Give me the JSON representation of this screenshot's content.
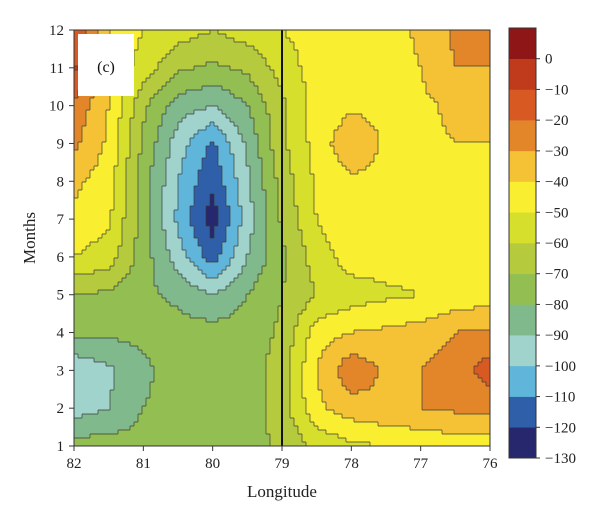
{
  "chart_data": {
    "type": "heatmap",
    "panel_label": "(c)",
    "xlabel": "Longitude",
    "ylabel": "Months",
    "x_ticks": [
      "82",
      "81",
      "80",
      "79",
      "78",
      "77",
      "76"
    ],
    "y_ticks": [
      "1",
      "2",
      "3",
      "4",
      "5",
      "6",
      "7",
      "8",
      "9",
      "10",
      "11",
      "12"
    ],
    "xlim": [
      82,
      76
    ],
    "ylim": [
      1,
      12
    ],
    "reference_line_x": 79,
    "colorbar": {
      "tick_labels": [
        "0",
        "−10",
        "−20",
        "−30",
        "−40",
        "−50",
        "−60",
        "−70",
        "−80",
        "−90",
        "−100",
        "−110",
        "−120",
        "−130"
      ],
      "levels": [
        -130,
        -120,
        -110,
        -100,
        -90,
        -80,
        -70,
        -60,
        -50,
        -40,
        -30,
        -20,
        -10,
        0,
        10
      ],
      "colors": [
        "#27276e",
        "#2f5fa8",
        "#5fb6da",
        "#9fd3cc",
        "#7fb98c",
        "#93bf52",
        "#b5cb3d",
        "#d7df2d",
        "#f9ee2f",
        "#f5c235",
        "#e3862a",
        "#d85a22",
        "#c03a1c",
        "#8e1616"
      ]
    },
    "values": {
      "description_none": "",
      "longitude": [
        82,
        81.5,
        81,
        80.5,
        80,
        79.5,
        79,
        78.5,
        78,
        77.5,
        77,
        76.5,
        76
      ],
      "month": [
        1,
        2,
        3,
        4,
        5,
        6,
        7,
        8,
        9,
        10,
        11,
        12
      ],
      "z": [
        [
          -75,
          -76,
          -76,
          -76,
          -76,
          -74,
          -68,
          -58,
          -52,
          -50,
          -48,
          -46,
          -45
        ],
        [
          -95,
          -90,
          -80,
          -76,
          -76,
          -75,
          -65,
          -42,
          -35,
          -32,
          -30,
          -28,
          -26
        ],
        [
          -98,
          -92,
          -82,
          -76,
          -76,
          -75,
          -65,
          -40,
          -22,
          -32,
          -30,
          -25,
          -15
        ],
        [
          -78,
          -78,
          -77,
          -76,
          -76,
          -76,
          -68,
          -45,
          -40,
          -38,
          -36,
          -30,
          -28
        ],
        [
          -70,
          -72,
          -78,
          -82,
          -90,
          -80,
          -70,
          -60,
          -55,
          -52,
          -50,
          -47,
          -45
        ],
        [
          -50,
          -55,
          -75,
          -95,
          -115,
          -90,
          -72,
          -55,
          -45,
          -45,
          -45,
          -45,
          -45
        ],
        [
          -42,
          -48,
          -75,
          -102,
          -125,
          -95,
          -68,
          -50,
          -42,
          -42,
          -42,
          -42,
          -42
        ],
        [
          -38,
          -45,
          -75,
          -100,
          -118,
          -92,
          -66,
          -48,
          -42,
          -42,
          -42,
          -42,
          -42
        ],
        [
          -28,
          -42,
          -72,
          -95,
          -112,
          -88,
          -62,
          -46,
          -32,
          -42,
          -42,
          -40,
          -40
        ],
        [
          -22,
          -40,
          -68,
          -85,
          -90,
          -80,
          -62,
          -46,
          -42,
          -42,
          -42,
          -38,
          -38
        ],
        [
          -8,
          -40,
          -55,
          -68,
          -72,
          -68,
          -56,
          -45,
          -44,
          -45,
          -40,
          -30,
          -30
        ],
        [
          -12,
          -40,
          -50,
          -55,
          -60,
          -55,
          -50,
          -45,
          -45,
          -45,
          -38,
          -28,
          -26
        ]
      ]
    }
  }
}
